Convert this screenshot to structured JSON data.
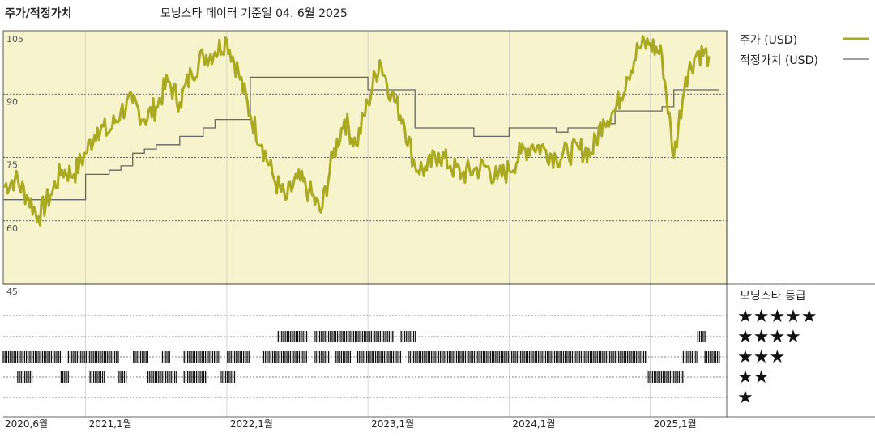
{
  "header": {
    "title": "주가/적정가치",
    "subtitle": "모닝스타 데이터 기준일 04. 6월 2025"
  },
  "colors": {
    "price": "#aaaa22",
    "fair_value": "#666666",
    "panel_bg": "#f7f3cc",
    "rating_bar": "#111111"
  },
  "chart_data": {
    "type": "line",
    "x_ticks": [
      "2020,6월",
      "2021,1월",
      "2022,1월",
      "2023,1월",
      "2024,1월",
      "2025,1월"
    ],
    "y_ticks": [
      "105",
      "90",
      "75",
      "60",
      "45"
    ],
    "ylim": [
      45,
      105
    ],
    "grid": true,
    "legend_position": "right",
    "series": [
      {
        "name": "주가 (USD)",
        "x": [
          "2020-06",
          "2020-07",
          "2020-08",
          "2020-09",
          "2020-10",
          "2020-11",
          "2020-12",
          "2021-01",
          "2021-02",
          "2021-03",
          "2021-04",
          "2021-05",
          "2021-06",
          "2021-07",
          "2021-08",
          "2021-09",
          "2021-10",
          "2021-11",
          "2021-12",
          "2022-01",
          "2022-02",
          "2022-03",
          "2022-04",
          "2022-05",
          "2022-06",
          "2022-07",
          "2022-08",
          "2022-09",
          "2022-10",
          "2022-11",
          "2022-12",
          "2023-01",
          "2023-02",
          "2023-03",
          "2023-04",
          "2023-05",
          "2023-06",
          "2023-07",
          "2023-08",
          "2023-09",
          "2023-10",
          "2023-11",
          "2023-12",
          "2024-01",
          "2024-02",
          "2024-03",
          "2024-04",
          "2024-05",
          "2024-06",
          "2024-07",
          "2024-08",
          "2024-09",
          "2024-10",
          "2024-11",
          "2024-12",
          "2025-01",
          "2025-02",
          "2025-03",
          "2025-04",
          "2025-05",
          "2025-06"
        ],
        "values": [
          68,
          70,
          66,
          61,
          66,
          72,
          71,
          76,
          82,
          81,
          86,
          88,
          84,
          87,
          93,
          88,
          95,
          99,
          100,
          103,
          95,
          85,
          78,
          70,
          65,
          70,
          67,
          62,
          75,
          84,
          78,
          88,
          98,
          90,
          84,
          73,
          72,
          76,
          73,
          71,
          72,
          73,
          70,
          72,
          76,
          78,
          77,
          75,
          76,
          77,
          76,
          84,
          86,
          94,
          101,
          102,
          99,
          75,
          94,
          100,
          99
        ]
      },
      {
        "name": "적정가치 (USD)",
        "x": [
          "2020-06",
          "2020-12",
          "2021-01",
          "2021-03",
          "2021-04",
          "2021-05",
          "2021-06",
          "2021-07",
          "2021-09",
          "2021-11",
          "2021-12",
          "2022-02",
          "2022-03",
          "2022-12",
          "2023-01",
          "2023-04",
          "2023-05",
          "2023-09",
          "2023-10",
          "2023-12",
          "2024-01",
          "2024-04",
          "2024-05",
          "2024-06",
          "2024-08",
          "2024-09",
          "2024-10",
          "2024-12",
          "2025-02",
          "2025-03",
          "2025-06"
        ],
        "values": [
          65,
          65,
          71,
          72,
          73,
          76,
          77,
          78,
          80,
          82,
          84,
          84,
          94,
          94,
          91,
          91,
          82,
          82,
          80,
          80,
          82,
          82,
          81,
          82,
          82,
          83,
          86,
          86,
          87,
          91,
          91
        ]
      }
    ]
  },
  "rating_panel": {
    "title": "모닝스타 등급",
    "stars": [
      "★★★★★",
      "★★★★",
      "★★★",
      "★★",
      "★"
    ],
    "rating_history": [
      [
        0.0,
        0.08,
        3
      ],
      [
        0.09,
        0.16,
        3
      ],
      [
        0.18,
        0.2,
        3
      ],
      [
        0.22,
        0.23,
        3
      ],
      [
        0.25,
        0.3,
        3
      ],
      [
        0.31,
        0.34,
        3
      ],
      [
        0.36,
        0.42,
        3
      ],
      [
        0.43,
        0.45,
        3
      ],
      [
        0.46,
        0.48,
        3
      ],
      [
        0.02,
        0.04,
        2
      ],
      [
        0.08,
        0.09,
        2
      ],
      [
        0.12,
        0.14,
        2
      ],
      [
        0.16,
        0.17,
        2
      ],
      [
        0.2,
        0.24,
        2
      ],
      [
        0.25,
        0.28,
        2
      ],
      [
        0.3,
        0.32,
        2
      ],
      [
        0.38,
        0.42,
        4
      ],
      [
        0.43,
        0.54,
        4
      ],
      [
        0.55,
        0.57,
        4
      ],
      [
        0.49,
        0.55,
        3
      ],
      [
        0.56,
        0.89,
        3
      ],
      [
        0.94,
        0.96,
        3
      ],
      [
        0.97,
        0.99,
        3
      ],
      [
        0.89,
        0.94,
        2
      ],
      [
        0.96,
        0.97,
        4
      ]
    ]
  }
}
